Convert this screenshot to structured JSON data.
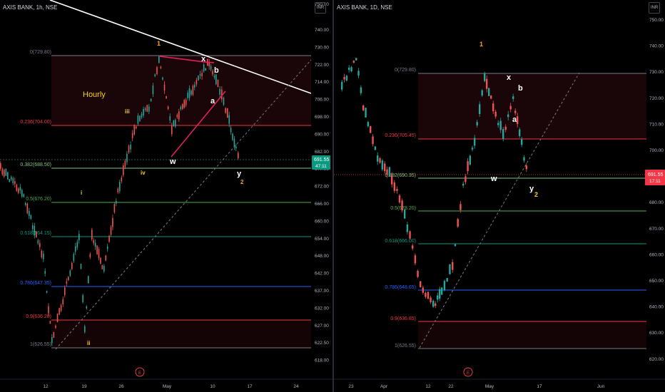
{
  "left": {
    "title": "AXIS BANK, 1h, NSE",
    "currency": "INR",
    "timeframe_label": "Hourly",
    "price_badge": "691.55",
    "countdown": "47:11",
    "price_axis": {
      "ticks": [
        "740.00",
        "730.00",
        "722.00",
        "714.00",
        "706.00",
        "698.00",
        "690.00",
        "682.00",
        "677.00",
        "672.00",
        "666.00",
        "660.00",
        "654.00",
        "648.00",
        "642.00",
        "637.00",
        "632.00",
        "627.00",
        "622.50",
        "618.00"
      ],
      "top_cut": "750.00"
    },
    "time_axis": [
      "12",
      "19",
      "26",
      "May",
      "10",
      "17",
      "24"
    ],
    "fib_levels": [
      {
        "label": "0(729.80)",
        "color": "#787b86"
      },
      {
        "label": "0.236(704.00)",
        "color": "#f23645"
      },
      {
        "label": "0.382(688.50)",
        "color": "#81c784"
      },
      {
        "label": "0.5(676.20)",
        "color": "#4caf50"
      },
      {
        "label": "0.618(664.15)",
        "color": "#089981"
      },
      {
        "label": "0.786(647.35)",
        "color": "#2962ff"
      },
      {
        "label": "0.9(636.20)",
        "color": "#f23645"
      },
      {
        "label": "1(626.55)",
        "color": "#787b86"
      }
    ],
    "wave_labels": [
      "1",
      "x",
      "b",
      "a",
      "w",
      "y",
      "2",
      "iii",
      "iv",
      "i",
      "ii"
    ],
    "event_marker": "E"
  },
  "right": {
    "title": "AXIS BANK, 1D, NSE",
    "currency": "INR",
    "price_badge": "691.55",
    "countdown": "17:11",
    "price_axis": {
      "ticks": [
        "750.00",
        "740.00",
        "730.00",
        "720.00",
        "710.00",
        "700.00",
        "690.00",
        "680.00",
        "670.00",
        "660.00",
        "650.00",
        "640.00",
        "630.00",
        "620.00"
      ]
    },
    "time_axis": [
      "23",
      "Apr",
      "12",
      "22",
      "May",
      "17",
      "Jun"
    ],
    "fib_levels": [
      {
        "label": "0(729.80)",
        "color": "#787b86"
      },
      {
        "label": "0.236(705.45)",
        "color": "#f23645"
      },
      {
        "label": "0.382(690.35)",
        "color": "#81c784"
      },
      {
        "label": "0.5(678.20)",
        "color": "#4caf50"
      },
      {
        "label": "0.618(666.00)",
        "color": "#089981"
      },
      {
        "label": "0.786(648.65)",
        "color": "#2962ff"
      },
      {
        "label": "0.9(636.85)",
        "color": "#f23645"
      },
      {
        "label": "1(626.55)",
        "color": "#787b86"
      }
    ],
    "wave_labels": [
      "1",
      "x",
      "b",
      "a",
      "w",
      "y",
      "2"
    ],
    "event_marker": "E"
  },
  "chart_data": [
    {
      "type": "candlestick",
      "title": "AXIS BANK, 1h, NSE",
      "interval": "1h",
      "last_price": 691.55,
      "fibonacci": [
        {
          "ratio": 0,
          "price": 729.8
        },
        {
          "ratio": 0.236,
          "price": 704.0
        },
        {
          "ratio": 0.382,
          "price": 688.5
        },
        {
          "ratio": 0.5,
          "price": 676.2
        },
        {
          "ratio": 0.618,
          "price": 664.15
        },
        {
          "ratio": 0.786,
          "price": 647.35
        },
        {
          "ratio": 0.9,
          "price": 636.2
        },
        {
          "ratio": 1,
          "price": 626.55
        }
      ],
      "ylim": [
        618,
        750
      ]
    },
    {
      "type": "candlestick",
      "title": "AXIS BANK, 1D, NSE",
      "interval": "1D",
      "last_price": 691.55,
      "fibonacci": [
        {
          "ratio": 0,
          "price": 729.8
        },
        {
          "ratio": 0.236,
          "price": 705.45
        },
        {
          "ratio": 0.382,
          "price": 690.35
        },
        {
          "ratio": 0.5,
          "price": 678.2
        },
        {
          "ratio": 0.618,
          "price": 666.0
        },
        {
          "ratio": 0.786,
          "price": 648.65
        },
        {
          "ratio": 0.9,
          "price": 636.85
        },
        {
          "ratio": 1,
          "price": 626.55
        }
      ],
      "ylim": [
        615,
        755
      ]
    }
  ]
}
